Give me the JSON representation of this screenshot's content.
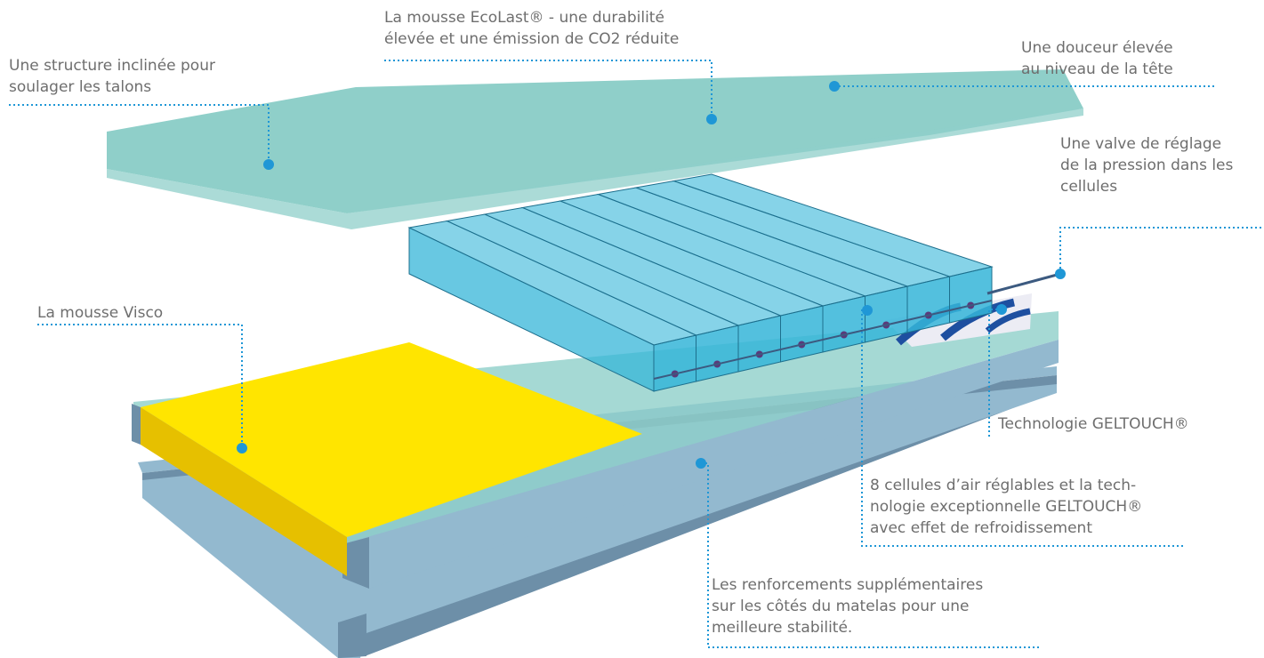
{
  "colors": {
    "top_layer": "#8fcfc9",
    "air_cells": "#35b5d8",
    "base_layer": "#93b9cf",
    "visco_foam": "#ffe500",
    "accent": "#1f97d6",
    "label_text": "#6e6e6e"
  },
  "labels": {
    "heel_structure": [
      "Une structure inclinée pour",
      "soulager les talons"
    ],
    "ecolast_foam": [
      "La mousse EcoLast® - une durabilité",
      "élevée et une émission de CO2 réduite"
    ],
    "head_softness": [
      "Une douceur élevée",
      "au niveau de la tête"
    ],
    "pressure_valve": [
      "Une valve de réglage",
      "de la pression dans les",
      "cellules"
    ],
    "visco_foam": [
      "La mousse Visco"
    ],
    "geltouch": [
      "Technologie GELTOUCH®"
    ],
    "air_cells": [
      "8 cellules d’air réglables et la tech-",
      "nologie exceptionnelle GELTOUCH®",
      "avec effet de refroidissement"
    ],
    "side_reinforcement": [
      "Les renforcements supplémentaires",
      "sur les côtés du matelas pour une",
      "meilleure stabilité."
    ]
  },
  "air_cell_count": 8
}
